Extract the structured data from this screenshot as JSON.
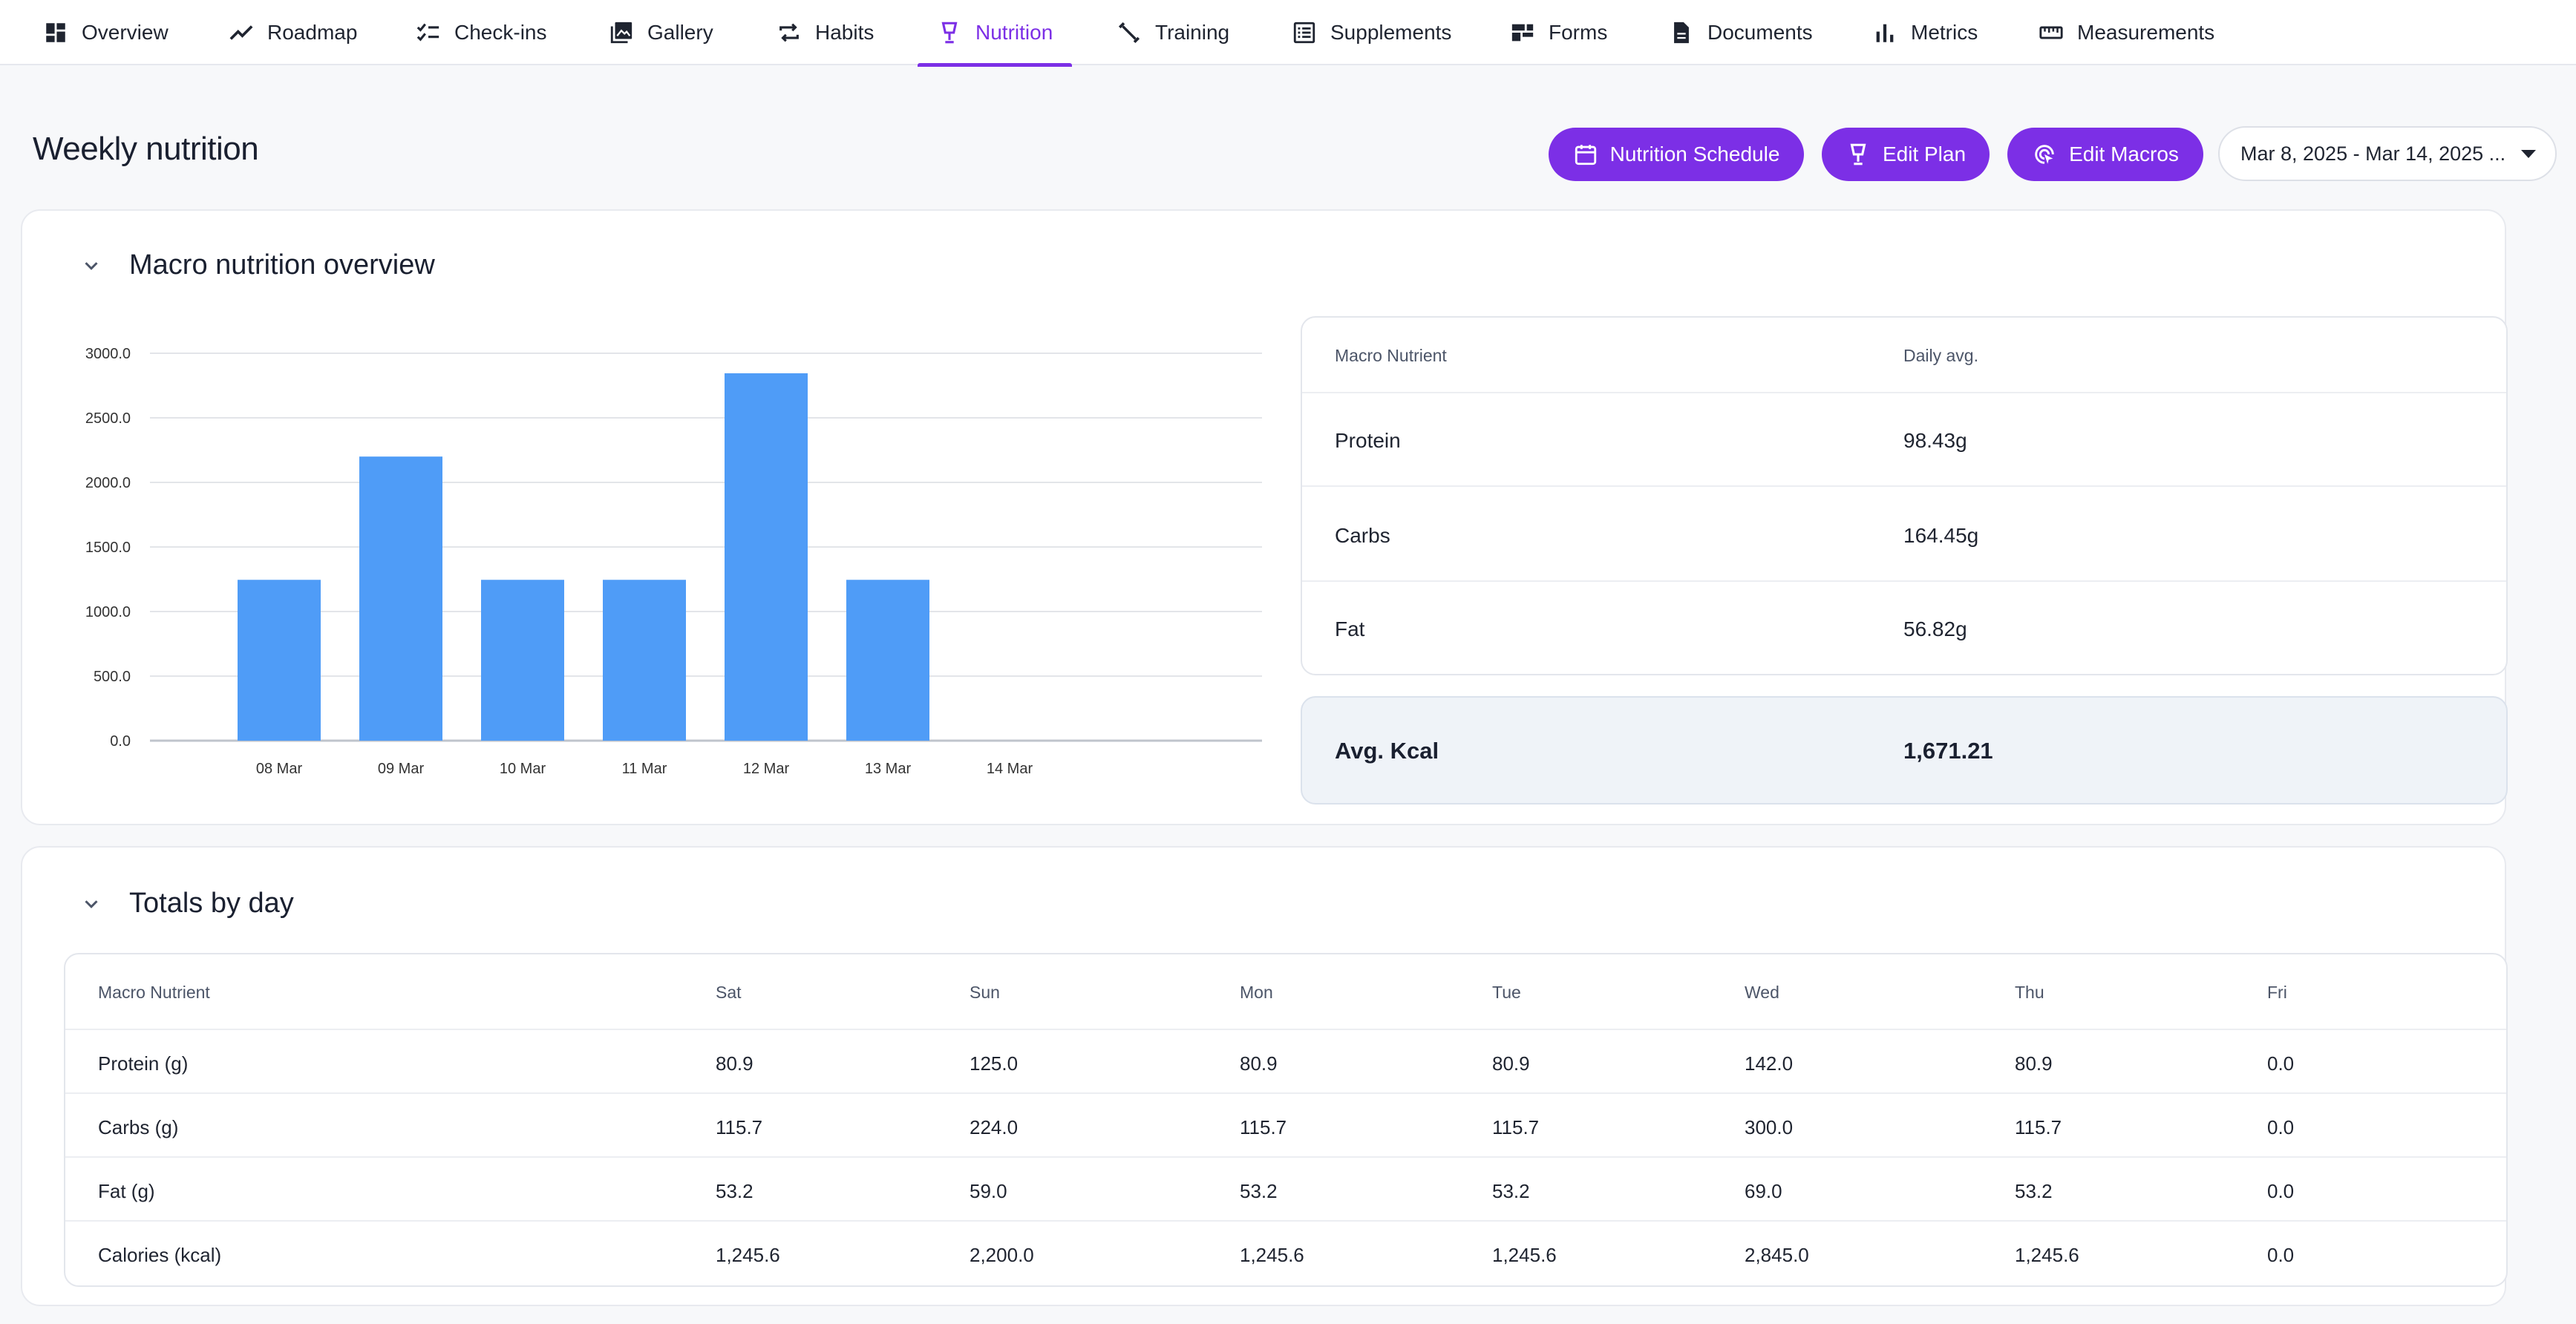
{
  "nav": {
    "tabs": [
      {
        "label": "Overview",
        "icon": "dashboard-icon"
      },
      {
        "label": "Roadmap",
        "icon": "trend-icon"
      },
      {
        "label": "Check-ins",
        "icon": "checklist-icon"
      },
      {
        "label": "Gallery",
        "icon": "image-icon"
      },
      {
        "label": "Habits",
        "icon": "repeat-icon"
      },
      {
        "label": "Nutrition",
        "icon": "cup-icon",
        "active": true
      },
      {
        "label": "Training",
        "icon": "dumbbell-icon"
      },
      {
        "label": "Supplements",
        "icon": "list-icon"
      },
      {
        "label": "Forms",
        "icon": "form-icon"
      },
      {
        "label": "Documents",
        "icon": "document-icon"
      },
      {
        "label": "Metrics",
        "icon": "bar-chart-icon"
      },
      {
        "label": "Measurements",
        "icon": "ruler-icon"
      }
    ]
  },
  "header": {
    "title": "Weekly nutrition",
    "buttons": {
      "schedule": "Nutrition Schedule",
      "edit_plan": "Edit Plan",
      "edit_macros": "Edit Macros"
    },
    "date_range": "Mar 8, 2025 - Mar 14, 2025 ..."
  },
  "overview": {
    "title": "Macro nutrition overview",
    "table": {
      "headers": [
        "Macro Nutrient",
        "Daily avg."
      ],
      "rows": [
        [
          "Protein",
          "98.43g"
        ],
        [
          "Carbs",
          "164.45g"
        ],
        [
          "Fat",
          "56.82g"
        ]
      ]
    },
    "kcal": {
      "label": "Avg. Kcal",
      "value": "1,671.21"
    }
  },
  "chart_data": {
    "type": "bar",
    "categories": [
      "08 Mar",
      "09 Mar",
      "10 Mar",
      "11 Mar",
      "12 Mar",
      "13 Mar",
      "14 Mar"
    ],
    "values": [
      1245.6,
      2200.0,
      1245.6,
      1245.6,
      2845.0,
      1245.6,
      0.0
    ],
    "yticks": [
      "0.0",
      "500.0",
      "1000.0",
      "1500.0",
      "2000.0",
      "2500.0",
      "3000.0"
    ],
    "ylim": [
      0,
      3000
    ],
    "grid": true,
    "color": "#4f9cf7"
  },
  "totals": {
    "title": "Totals by day",
    "headers": [
      "Macro Nutrient",
      "Sat",
      "Sun",
      "Mon",
      "Tue",
      "Wed",
      "Thu",
      "Fri"
    ],
    "rows": [
      [
        "Protein (g)",
        "80.9",
        "125.0",
        "80.9",
        "80.9",
        "142.0",
        "80.9",
        "0.0"
      ],
      [
        "Carbs (g)",
        "115.7",
        "224.0",
        "115.7",
        "115.7",
        "300.0",
        "115.7",
        "0.0"
      ],
      [
        "Fat (g)",
        "53.2",
        "59.0",
        "53.2",
        "53.2",
        "69.0",
        "53.2",
        "0.0"
      ],
      [
        "Calories (kcal)",
        "1,245.6",
        "2,200.0",
        "1,245.6",
        "1,245.6",
        "2,845.0",
        "1,245.6",
        "0.0"
      ]
    ]
  },
  "colors": {
    "accent": "#7c2fe6",
    "bar": "#4f9cf7"
  }
}
